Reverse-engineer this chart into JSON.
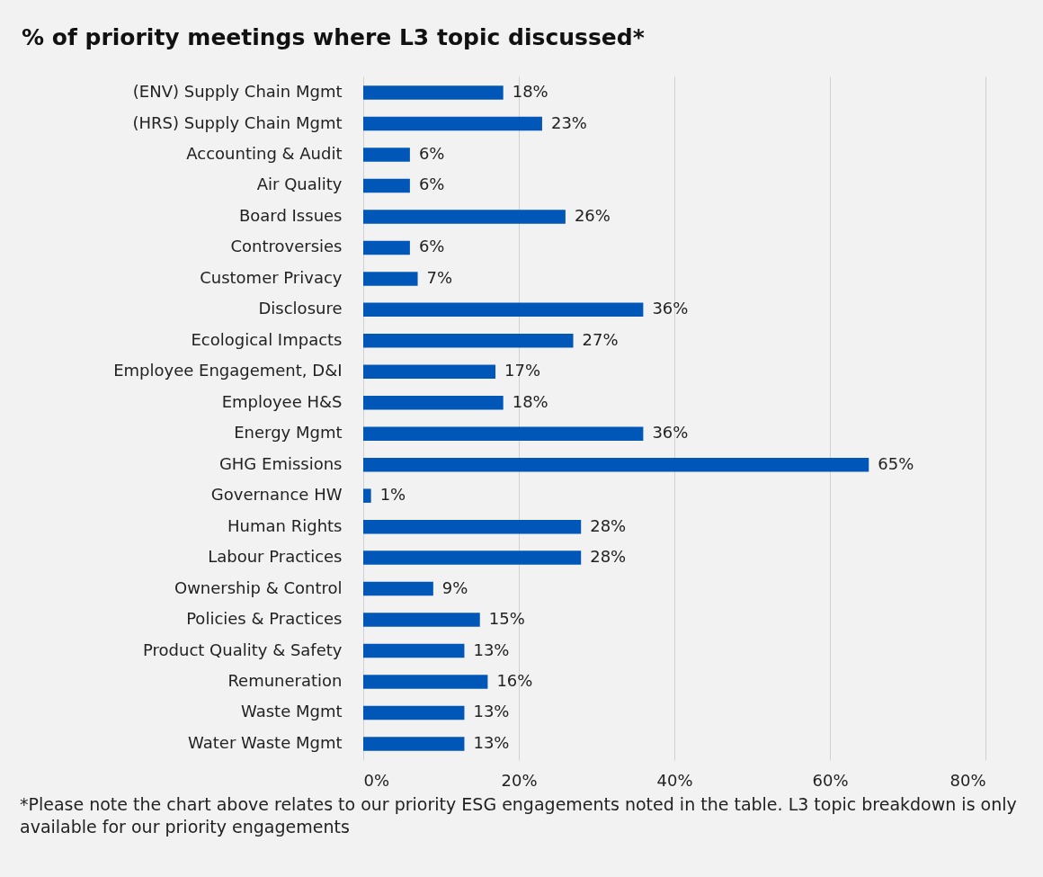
{
  "chart_data": {
    "type": "bar",
    "orientation": "horizontal",
    "title": "% of priority meetings where L3 topic discussed*",
    "categories": [
      "(ENV) Supply Chain Mgmt",
      "(HRS) Supply Chain Mgmt",
      "Accounting & Audit",
      "Air Quality",
      "Board Issues",
      "Controversies",
      "Customer Privacy",
      "Disclosure",
      "Ecological Impacts",
      "Employee Engagement, D&I",
      "Employee H&S",
      "Energy Mgmt",
      "GHG Emissions",
      "Governance HW",
      "Human Rights",
      "Labour Practices",
      "Ownership & Control",
      "Policies & Practices",
      "Product Quality & Safety",
      "Remuneration",
      "Waste Mgmt",
      "Water Waste Mgmt"
    ],
    "values": [
      18,
      23,
      6,
      6,
      26,
      6,
      7,
      36,
      27,
      17,
      18,
      36,
      65,
      1,
      28,
      28,
      9,
      15,
      13,
      16,
      13,
      13
    ],
    "value_labels": [
      "18%",
      "23%",
      "6%",
      "6%",
      "26%",
      "6%",
      "7%",
      "36%",
      "27%",
      "17%",
      "18%",
      "36%",
      "65%",
      "1%",
      "28%",
      "28%",
      "9%",
      "15%",
      "13%",
      "16%",
      "13%",
      "13%"
    ],
    "color": "#0057b8",
    "xlim": [
      0,
      80
    ],
    "xticks": [
      {
        "value": 0,
        "label": "0%"
      },
      {
        "value": 20,
        "label": "20%"
      },
      {
        "value": 40,
        "label": "40%"
      },
      {
        "value": 60,
        "label": "60%"
      },
      {
        "value": 80,
        "label": "80%"
      }
    ],
    "grid": "x",
    "annotations": [
      "*Please note the chart above relates to our priority ESG engagements noted in the table. L3 topic breakdown is only available for our priority engagements"
    ]
  }
}
